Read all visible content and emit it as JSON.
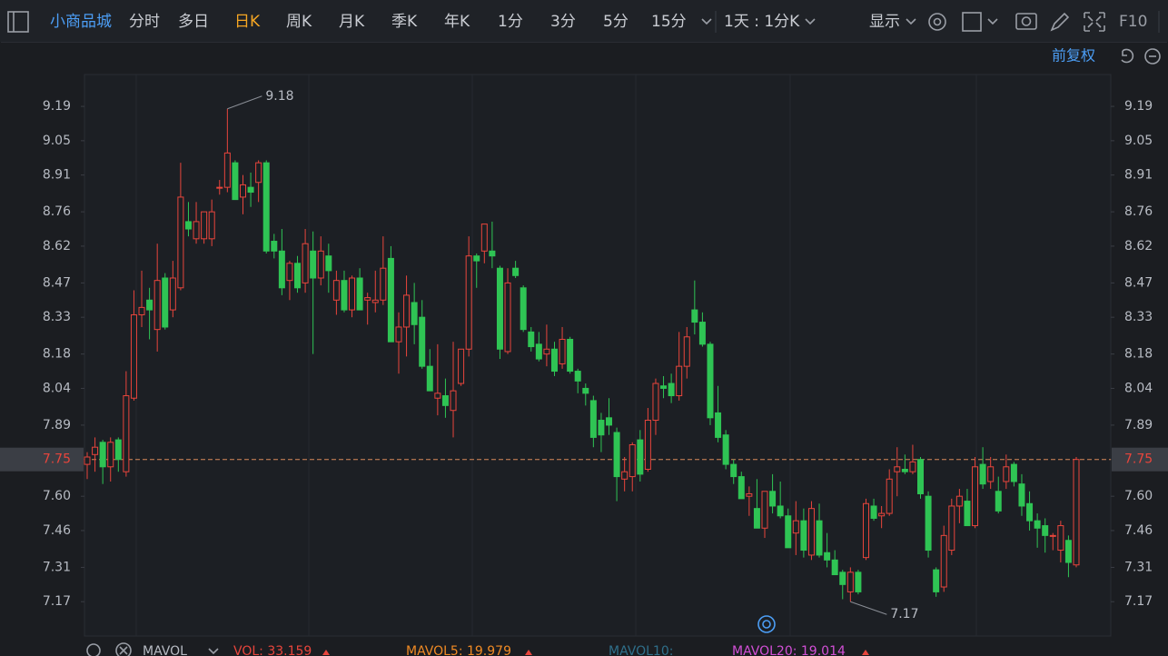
{
  "toolbar": {
    "stock": "小商品城",
    "tabs": [
      "分时",
      "多日",
      "日K",
      "周K",
      "月K",
      "季K",
      "年K",
      "1分",
      "3分",
      "5分",
      "15分"
    ],
    "active_tab": "日K",
    "period": "1天 : 1分K",
    "display": "显示",
    "f10": "F10"
  },
  "adjust": "前复权",
  "chart_data": {
    "type": "candlestick",
    "up_color": "#e8453c",
    "down_color": "#2fc454",
    "ylim": [
      7.03,
      9.32
    ],
    "yticks": [
      9.19,
      9.05,
      8.91,
      8.76,
      8.62,
      8.47,
      8.33,
      8.18,
      8.04,
      7.89,
      7.75,
      {
        "value": 7.6,
        "label": "7.60"
      },
      7.46,
      7.31,
      7.17
    ],
    "high_label": "9.18",
    "low_label": "7.17",
    "ohlc": [
      [
        7.73,
        7.78,
        7.67,
        7.76
      ],
      [
        7.77,
        7.84,
        7.7,
        7.8
      ],
      [
        7.82,
        7.83,
        7.65,
        7.72
      ],
      [
        7.72,
        7.84,
        7.66,
        7.82
      ],
      [
        7.83,
        7.84,
        7.7,
        7.75
      ],
      [
        7.7,
        8.11,
        7.68,
        8.01
      ],
      [
        8.0,
        8.44,
        7.99,
        8.34
      ],
      [
        8.34,
        8.52,
        8.29,
        8.37
      ],
      [
        8.4,
        8.45,
        8.24,
        8.36
      ],
      [
        8.28,
        8.63,
        8.19,
        8.48
      ],
      [
        8.49,
        8.51,
        8.28,
        8.29
      ],
      [
        8.36,
        8.56,
        8.33,
        8.49
      ],
      [
        8.45,
        8.96,
        8.44,
        8.82
      ],
      [
        8.72,
        8.8,
        8.66,
        8.69
      ],
      [
        8.65,
        8.8,
        8.63,
        8.72
      ],
      [
        8.65,
        8.76,
        8.63,
        8.76
      ],
      [
        8.65,
        8.81,
        8.62,
        8.76
      ],
      [
        8.86,
        8.89,
        8.83,
        8.86
      ],
      [
        8.86,
        9.18,
        8.84,
        9.0
      ],
      [
        8.96,
        8.97,
        8.81,
        8.81
      ],
      [
        8.82,
        8.91,
        8.75,
        8.87
      ],
      [
        8.86,
        8.92,
        8.78,
        8.84
      ],
      [
        8.88,
        8.97,
        8.8,
        8.96
      ],
      [
        8.96,
        8.97,
        8.59,
        8.6
      ],
      [
        8.64,
        8.67,
        8.57,
        8.6
      ],
      [
        8.6,
        8.69,
        8.42,
        8.45
      ],
      [
        8.48,
        8.56,
        8.4,
        8.55
      ],
      [
        8.55,
        8.58,
        8.43,
        8.45
      ],
      [
        8.47,
        8.69,
        8.43,
        8.63
      ],
      [
        8.6,
        8.68,
        8.18,
        8.49
      ],
      [
        8.49,
        8.66,
        8.46,
        8.6
      ],
      [
        8.58,
        8.63,
        8.43,
        8.52
      ],
      [
        8.4,
        8.52,
        8.34,
        8.48
      ],
      [
        8.48,
        8.52,
        8.35,
        8.36
      ],
      [
        8.36,
        8.5,
        8.33,
        8.49
      ],
      [
        8.49,
        8.53,
        8.38,
        8.36
      ],
      [
        8.4,
        8.43,
        8.3,
        8.41
      ],
      [
        8.39,
        8.52,
        8.35,
        8.4
      ],
      [
        8.4,
        8.66,
        8.38,
        8.53
      ],
      [
        8.57,
        8.62,
        8.23,
        8.23
      ],
      [
        8.23,
        8.35,
        8.1,
        8.29
      ],
      [
        8.29,
        8.5,
        8.17,
        8.42
      ],
      [
        8.39,
        8.47,
        8.22,
        8.3
      ],
      [
        8.33,
        8.4,
        8.12,
        8.13
      ],
      [
        8.13,
        8.2,
        8.03,
        8.03
      ],
      [
        8.0,
        8.22,
        7.93,
        8.02
      ],
      [
        8.01,
        8.08,
        7.92,
        7.97
      ],
      [
        7.95,
        8.23,
        7.84,
        8.03
      ],
      [
        8.06,
        8.2,
        8.05,
        8.2
      ],
      [
        8.2,
        8.66,
        8.17,
        8.58
      ],
      [
        8.58,
        8.59,
        8.45,
        8.56
      ],
      [
        8.6,
        8.71,
        8.55,
        8.71
      ],
      [
        8.6,
        8.72,
        8.53,
        8.58
      ],
      [
        8.53,
        8.54,
        8.16,
        8.2
      ],
      [
        8.19,
        8.53,
        8.18,
        8.47
      ],
      [
        8.53,
        8.56,
        8.49,
        8.5
      ],
      [
        8.45,
        8.46,
        8.27,
        8.28
      ],
      [
        8.27,
        8.29,
        8.19,
        8.21
      ],
      [
        8.22,
        8.27,
        8.15,
        8.16
      ],
      [
        8.18,
        8.3,
        8.13,
        8.2
      ],
      [
        8.2,
        8.23,
        8.09,
        8.11
      ],
      [
        8.14,
        8.29,
        8.12,
        8.24
      ],
      [
        8.24,
        8.25,
        8.1,
        8.11
      ],
      [
        8.11,
        8.12,
        8.02,
        8.07
      ],
      [
        8.04,
        8.06,
        7.97,
        8.02
      ],
      [
        7.99,
        8.01,
        7.8,
        7.84
      ],
      [
        7.91,
        7.94,
        7.78,
        7.85
      ],
      [
        7.92,
        8.0,
        7.85,
        7.89
      ],
      [
        7.86,
        7.88,
        7.58,
        7.68
      ],
      [
        7.67,
        7.76,
        7.62,
        7.7
      ],
      [
        7.68,
        7.82,
        7.62,
        7.81
      ],
      [
        7.83,
        7.87,
        7.66,
        7.69
      ],
      [
        7.71,
        7.96,
        7.7,
        7.91
      ],
      [
        7.91,
        8.08,
        7.85,
        8.06
      ],
      [
        8.05,
        8.09,
        8.0,
        8.04
      ],
      [
        8.06,
        8.1,
        7.98,
        8.01
      ],
      [
        8.01,
        8.27,
        7.99,
        8.13
      ],
      [
        8.13,
        8.29,
        8.08,
        8.25
      ],
      [
        8.36,
        8.48,
        8.26,
        8.31
      ],
      [
        8.31,
        8.35,
        8.21,
        8.22
      ],
      [
        8.22,
        8.23,
        7.89,
        7.92
      ],
      [
        7.94,
        8.05,
        7.82,
        7.84
      ],
      [
        7.85,
        7.87,
        7.71,
        7.73
      ],
      [
        7.73,
        7.75,
        7.65,
        7.68
      ],
      [
        7.68,
        7.7,
        7.59,
        7.59
      ],
      [
        7.6,
        7.64,
        7.52,
        7.61
      ],
      [
        7.55,
        7.67,
        7.47,
        7.47
      ],
      [
        7.47,
        7.62,
        7.43,
        7.62
      ],
      [
        7.62,
        7.69,
        7.53,
        7.56
      ],
      [
        7.56,
        7.66,
        7.51,
        7.52
      ],
      [
        7.52,
        7.55,
        7.4,
        7.39
      ],
      [
        7.45,
        7.58,
        7.36,
        7.5
      ],
      [
        7.5,
        7.55,
        7.35,
        7.38
      ],
      [
        7.36,
        7.58,
        7.34,
        7.55
      ],
      [
        7.5,
        7.57,
        7.35,
        7.36
      ],
      [
        7.37,
        7.45,
        7.31,
        7.34
      ],
      [
        7.34,
        7.38,
        7.29,
        7.28
      ],
      [
        7.29,
        7.3,
        7.18,
        7.24
      ],
      [
        7.21,
        7.31,
        7.17,
        7.29
      ],
      [
        7.29,
        7.3,
        7.2,
        7.21
      ],
      [
        7.35,
        7.59,
        7.34,
        7.57
      ],
      [
        7.56,
        7.59,
        7.5,
        7.51
      ],
      [
        7.52,
        7.56,
        7.47,
        7.53
      ],
      [
        7.53,
        7.71,
        7.52,
        7.67
      ],
      [
        7.7,
        7.8,
        7.6,
        7.72
      ],
      [
        7.71,
        7.77,
        7.69,
        7.7
      ],
      [
        7.7,
        7.81,
        7.69,
        7.74
      ],
      [
        7.75,
        7.76,
        7.59,
        7.61
      ],
      [
        7.6,
        7.62,
        7.35,
        7.38
      ],
      [
        7.3,
        7.31,
        7.19,
        7.21
      ],
      [
        7.23,
        7.48,
        7.21,
        7.44
      ],
      [
        7.38,
        7.59,
        7.36,
        7.56
      ],
      [
        7.56,
        7.63,
        7.49,
        7.6
      ],
      [
        7.58,
        7.63,
        7.48,
        7.48
      ],
      [
        7.48,
        7.76,
        7.47,
        7.72
      ],
      [
        7.73,
        7.8,
        7.63,
        7.65
      ],
      [
        7.66,
        7.76,
        7.63,
        7.72
      ],
      [
        7.62,
        7.68,
        7.53,
        7.54
      ],
      [
        7.66,
        7.77,
        7.63,
        7.72
      ],
      [
        7.73,
        7.74,
        7.64,
        7.66
      ],
      [
        7.65,
        7.69,
        7.52,
        7.56
      ],
      [
        7.57,
        7.62,
        7.46,
        7.5
      ],
      [
        7.5,
        7.53,
        7.39,
        7.47
      ],
      [
        7.48,
        7.51,
        7.37,
        7.44
      ],
      [
        7.44,
        7.45,
        7.38,
        7.44
      ],
      [
        7.38,
        7.5,
        7.33,
        7.48
      ],
      [
        7.42,
        7.44,
        7.27,
        7.33
      ],
      [
        7.32,
        7.76,
        7.31,
        7.75
      ]
    ]
  },
  "indicators": {
    "name": "MAVOL",
    "items": [
      {
        "text": "VOL: 33.159",
        "color": "#e8453c"
      },
      {
        "text": "MAVOL5: 19.979",
        "color": "#f08a24"
      },
      {
        "text": "MAVOL10:",
        "color": "#2f6f8a"
      },
      {
        "text": "MAVOL20: 19.014",
        "color": "#d24fd6"
      }
    ]
  }
}
